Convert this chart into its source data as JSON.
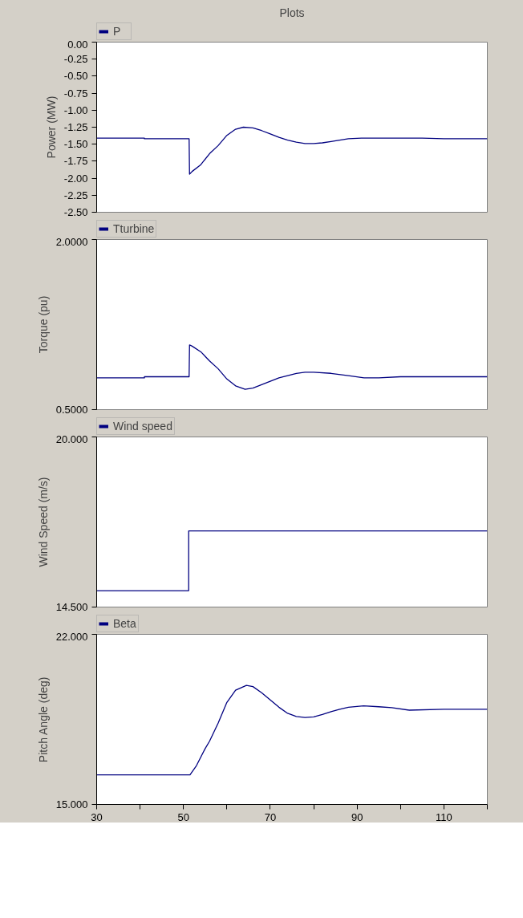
{
  "chart_data": [
    {
      "type": "line",
      "title": "Plots",
      "ylabel": "Power (MW)",
      "legend": "top left",
      "tick_labels": "y",
      "xlim": [
        30,
        120
      ],
      "ylim": [
        -2.5,
        0
      ],
      "yticks": [
        {
          "value": 0,
          "label": "0.00"
        },
        {
          "value": -0.25,
          "label": "-0.25"
        },
        {
          "value": -0.5,
          "label": "-0.50"
        },
        {
          "value": -0.75,
          "label": "-0.75"
        },
        {
          "value": -1,
          "label": "-1.00"
        },
        {
          "value": -1.25,
          "label": "-1.25"
        },
        {
          "value": -1.5,
          "label": "-1.50"
        },
        {
          "value": -1.75,
          "label": "-1.75"
        },
        {
          "value": -2,
          "label": "-2.00"
        },
        {
          "value": -2.25,
          "label": "-2.25"
        },
        {
          "value": -2.5,
          "label": "-2.50"
        }
      ],
      "series": [
        {
          "name": "P",
          "color": "#000080",
          "x": [
            30,
            41,
            41,
            51.3,
            51.4,
            52,
            54,
            56,
            58,
            60,
            62,
            63.8,
            66,
            68,
            70,
            72,
            74,
            76,
            78,
            80,
            82,
            84,
            86,
            88,
            91,
            95,
            100,
            105,
            110,
            120
          ],
          "values": [
            -1.41,
            -1.41,
            -1.42,
            -1.42,
            -1.94,
            -1.9,
            -1.8,
            -1.64,
            -1.52,
            -1.37,
            -1.28,
            -1.25,
            -1.26,
            -1.3,
            -1.35,
            -1.4,
            -1.44,
            -1.47,
            -1.49,
            -1.49,
            -1.48,
            -1.46,
            -1.44,
            -1.42,
            -1.41,
            -1.41,
            -1.41,
            -1.41,
            -1.42,
            -1.42
          ]
        }
      ]
    },
    {
      "type": "line",
      "ylabel": "Torque (pu)",
      "legend": "top left",
      "tick_labels": "y",
      "xlim": [
        30,
        120
      ],
      "ylim": [
        0.5,
        2
      ],
      "yticks": [
        {
          "value": 2,
          "label": "2.0000"
        },
        {
          "value": 0.5,
          "label": "0.5000"
        }
      ],
      "series": [
        {
          "name": "Tturbine",
          "color": "#000080",
          "x": [
            30,
            41,
            41,
            51.3,
            51.4,
            52,
            54,
            56,
            58,
            60,
            62,
            64.2,
            66,
            68,
            70,
            72,
            74,
            76,
            78,
            80,
            84,
            88,
            91.6,
            95,
            100,
            110,
            120
          ],
          "values": [
            0.78,
            0.78,
            0.79,
            0.79,
            1.07,
            1.06,
            1.01,
            0.93,
            0.86,
            0.77,
            0.71,
            0.68,
            0.69,
            0.72,
            0.75,
            0.78,
            0.8,
            0.82,
            0.83,
            0.83,
            0.82,
            0.8,
            0.78,
            0.78,
            0.79,
            0.79,
            0.79
          ]
        }
      ]
    },
    {
      "type": "line",
      "ylabel": "Wind Speed (m/s)",
      "legend": "top left",
      "tick_labels": "y",
      "xlim": [
        30,
        120
      ],
      "ylim": [
        14.5,
        20
      ],
      "yticks": [
        {
          "value": 20,
          "label": "20.000"
        },
        {
          "value": 14.5,
          "label": "14.500"
        }
      ],
      "series": [
        {
          "name": "Wind speed",
          "color": "#000080",
          "x": [
            30,
            51.2,
            51.2,
            120
          ],
          "values": [
            15.03,
            15.03,
            16.96,
            16.96
          ]
        }
      ]
    },
    {
      "type": "line",
      "ylabel": "Pitch Angle (deg)",
      "legend": "top left",
      "xlim": [
        30,
        120
      ],
      "ylim": [
        15,
        22
      ],
      "xticks": [
        30,
        50,
        70,
        90,
        110,
        {
          "value": 40,
          "label": null
        },
        {
          "value": 60,
          "label": null
        },
        {
          "value": 80,
          "label": null
        },
        {
          "value": 100,
          "label": null
        },
        {
          "value": 120,
          "label": null
        }
      ],
      "yticks": [
        {
          "value": 22,
          "label": "22.000"
        },
        {
          "value": 15,
          "label": "15.000"
        }
      ],
      "series": [
        {
          "name": "Beta",
          "color": "#000080",
          "x": [
            30,
            51.5,
            53,
            55,
            56,
            58,
            60,
            62,
            64.5,
            66,
            68,
            70,
            72,
            74,
            76,
            78,
            80,
            82,
            84,
            86,
            88,
            91.5,
            95,
            98,
            102,
            110,
            120
          ],
          "values": [
            16.22,
            16.22,
            16.6,
            17.3,
            17.6,
            18.35,
            19.2,
            19.7,
            19.9,
            19.85,
            19.6,
            19.3,
            19.0,
            18.75,
            18.62,
            18.58,
            18.6,
            18.7,
            18.82,
            18.92,
            19.0,
            19.06,
            19.02,
            18.98,
            18.88,
            18.92,
            18.92
          ]
        }
      ]
    }
  ]
}
